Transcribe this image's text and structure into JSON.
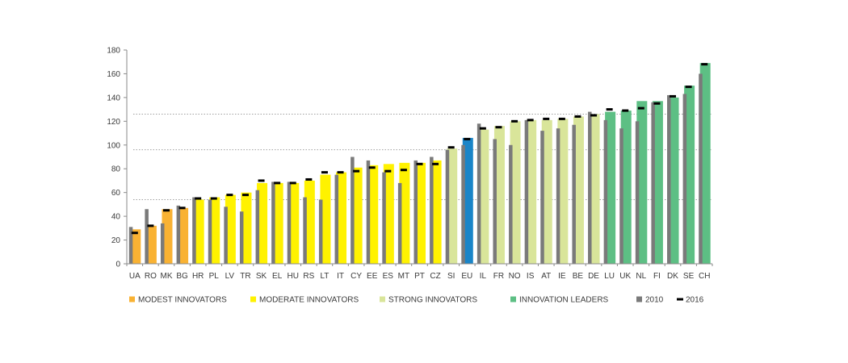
{
  "chart_data": {
    "type": "bar",
    "title": "",
    "xlabel": "",
    "ylabel": "",
    "ylim": [
      0,
      180
    ],
    "y_ticks": [
      0,
      20,
      40,
      60,
      80,
      100,
      120,
      140,
      160,
      180
    ],
    "reference_lines": [
      54,
      96,
      126
    ],
    "categories": [
      "UA",
      "RO",
      "MK",
      "BG",
      "HR",
      "PL",
      "LV",
      "TR",
      "SK",
      "EL",
      "HU",
      "RS",
      "LT",
      "IT",
      "CY",
      "EE",
      "ES",
      "MT",
      "PT",
      "CZ",
      "SI",
      "EU",
      "IL",
      "FR",
      "NO",
      "IS",
      "AT",
      "IE",
      "BE",
      "DE",
      "LU",
      "UK",
      "NL",
      "FI",
      "DK",
      "SE",
      "CH"
    ],
    "groups": [
      "modest",
      "modest",
      "modest",
      "modest",
      "moderate",
      "moderate",
      "moderate",
      "moderate",
      "moderate",
      "moderate",
      "moderate",
      "moderate",
      "moderate",
      "moderate",
      "moderate",
      "moderate",
      "moderate",
      "moderate",
      "moderate",
      "moderate",
      "strong",
      "eu",
      "strong",
      "strong",
      "strong",
      "strong",
      "strong",
      "strong",
      "strong",
      "strong",
      "leader",
      "leader",
      "leader",
      "leader",
      "leader",
      "leader",
      "leader"
    ],
    "series": [
      {
        "name": "",
        "values": [
          29,
          32,
          46,
          47,
          54,
          56,
          58,
          60,
          68,
          68,
          68,
          70,
          75,
          77,
          81,
          83,
          84,
          85,
          85,
          87,
          97,
          106,
          113,
          116,
          120,
          121,
          121,
          122,
          124,
          126,
          128,
          129,
          137,
          137,
          140,
          150,
          169
        ]
      },
      {
        "name": "2010",
        "values": [
          31,
          46,
          34,
          49,
          56,
          54,
          48,
          44,
          62,
          69,
          69,
          56,
          54,
          75,
          90,
          87,
          77,
          68,
          87,
          90,
          96,
          100,
          118,
          105,
          100,
          121,
          112,
          114,
          117,
          128,
          121,
          114,
          120,
          136,
          142,
          143,
          160
        ]
      },
      {
        "name": "2016",
        "values": [
          26,
          32,
          45,
          47,
          55,
          55,
          58,
          58,
          70,
          68,
          68,
          71,
          77,
          77,
          78,
          81,
          78,
          79,
          84,
          84,
          98,
          105,
          114,
          115,
          120,
          121,
          122,
          122,
          124,
          125,
          130,
          129,
          131,
          135,
          141,
          149,
          168
        ]
      }
    ],
    "colors": {
      "modest": "#f9b233",
      "moderate": "#fff200",
      "strong": "#d9e59a",
      "eu": "#1a85c8",
      "leader": "#5dbf84",
      "bar_2010": "#7a7a7a",
      "marker_2016": "#000000",
      "axis": "#8a8a8a",
      "reference_line": "#a0a0a0"
    },
    "legend": {
      "placement": "bottom",
      "items": [
        {
          "label": "MODEST INNOVATORS",
          "color_key": "modest",
          "kind": "square"
        },
        {
          "label": "MODERATE INNOVATORS",
          "color_key": "moderate",
          "kind": "square"
        },
        {
          "label": "STRONG INNOVATORS",
          "color_key": "strong",
          "kind": "square"
        },
        {
          "label": "INNOVATION LEADERS",
          "color_key": "leader",
          "kind": "square"
        },
        {
          "label": "2010",
          "color_key": "bar_2010",
          "kind": "square"
        },
        {
          "label": "2016",
          "color_key": "marker_2016",
          "kind": "dash"
        }
      ]
    },
    "grid": false
  }
}
